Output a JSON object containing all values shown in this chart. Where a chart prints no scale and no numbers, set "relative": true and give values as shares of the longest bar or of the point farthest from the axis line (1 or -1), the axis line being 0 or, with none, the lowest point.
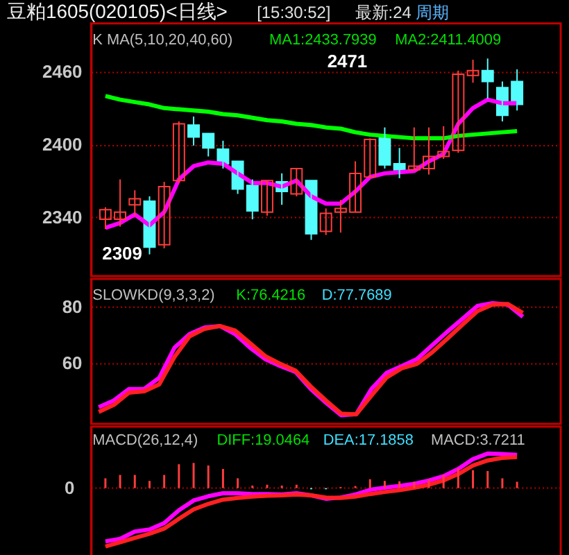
{
  "chart_data": [
    {
      "type": "candlestick",
      "title": "豆粕1605(020105)<日线>",
      "annotations": [
        "[15:30:52]",
        "最新:24",
        "周期",
        "K  MA(5,10,20,40,60)",
        "MA1:2433.7939",
        "MA2:2411.4009",
        "2309",
        "2471"
      ],
      "categories": [
        null,
        null,
        null,
        null,
        null,
        null,
        null,
        null,
        null,
        null,
        null,
        null,
        null,
        null,
        null,
        null,
        null,
        null,
        null,
        null,
        null,
        null,
        null,
        null,
        null,
        null,
        null,
        null,
        null
      ],
      "ohlc": [
        [
          2338,
          2348,
          2330,
          2346
        ],
        [
          2338,
          2371,
          2332,
          2344
        ],
        [
          2350,
          2362,
          2341,
          2355
        ],
        [
          2353,
          2357,
          2309,
          2315
        ],
        [
          2317,
          2369,
          2314,
          2365
        ],
        [
          2370,
          2419,
          2368,
          2417
        ],
        [
          2416,
          2423,
          2399,
          2406
        ],
        [
          2409,
          2409,
          2390,
          2397
        ],
        [
          2396,
          2403,
          2380,
          2384
        ],
        [
          2386,
          2386,
          2359,
          2363
        ],
        [
          2366,
          2371,
          2338,
          2345
        ],
        [
          2344,
          2370,
          2341,
          2370
        ],
        [
          2369,
          2376,
          2350,
          2361
        ],
        [
          2359,
          2380,
          2357,
          2380
        ],
        [
          2370,
          2370,
          2321,
          2326
        ],
        [
          2328,
          2347,
          2325,
          2343
        ],
        [
          2344,
          2354,
          2327,
          2347
        ],
        [
          2344,
          2386,
          2344,
          2376
        ],
        [
          2373,
          2405,
          2373,
          2404
        ],
        [
          2407,
          2414,
          2380,
          2383
        ],
        [
          2384,
          2397,
          2372,
          2379
        ],
        [
          2379,
          2414,
          2379,
          2382
        ],
        [
          2380,
          2414,
          2375,
          2390
        ],
        [
          2390,
          2415,
          2388,
          2394
        ],
        [
          2395,
          2461,
          2393,
          2458
        ],
        [
          2457,
          2470,
          2451,
          2461
        ],
        [
          2461,
          2471,
          2438,
          2452
        ],
        [
          2447,
          2452,
          2419,
          2424
        ],
        [
          2452,
          2462,
          2428,
          2433
        ]
      ],
      "colors": [
        "#ff3c3c",
        "#ff3c3c",
        "#ff3c3c",
        "#54fcfc",
        "#ff3c3c",
        "#ff3c3c",
        "#54fcfc",
        "#54fcfc",
        "#54fcfc",
        "#54fcfc",
        "#54fcfc",
        "#ff3c3c",
        "#54fcfc",
        "#ff3c3c",
        "#54fcfc",
        "#ff3c3c",
        "#ff3c3c",
        "#ff3c3c",
        "#ff3c3c",
        "#54fcfc",
        "#54fcfc",
        "#ff3c3c",
        "#ff3c3c",
        "#ff3c3c",
        "#ff3c3c",
        "#ff3c3c",
        "#54fcfc",
        "#54fcfc",
        "#54fcfc"
      ],
      "series": [
        {
          "type": "line",
          "color": "#ff00ff",
          "values": [
            2331,
            2335,
            2342,
            2333,
            2344,
            2371,
            2382,
            2385,
            2384,
            2376,
            2368,
            2368,
            2365,
            2370,
            2357,
            2351,
            2351,
            2361,
            2373,
            2376,
            2377,
            2378,
            2386,
            2392,
            2417,
            2430,
            2437,
            2434,
            2434
          ]
        },
        {
          "type": "line",
          "color": "#00ff00",
          "values": [
            2440,
            2437,
            2435,
            2433,
            2430,
            2429,
            2428,
            2427,
            2425,
            2424,
            2422,
            2420,
            2419,
            2417,
            2416,
            2414,
            2413,
            2410,
            2408,
            2407,
            2406,
            2405,
            2405,
            2405,
            2407,
            2408,
            2409,
            2410,
            2411
          ]
        }
      ],
      "ylim": [
        2291,
        2500
      ],
      "yticks": [
        2340,
        2400,
        2460
      ],
      "grid": "y",
      "tick_labels": "y"
    },
    {
      "type": "line",
      "annotations": [
        "SLOWKD(9,3,3,2)",
        "K:76.4216",
        "D:77.7689"
      ],
      "categories": [
        null,
        null,
        null,
        null,
        null,
        null,
        null,
        null,
        null,
        null,
        null,
        null,
        null,
        null,
        null,
        null,
        null,
        null,
        null,
        null,
        null,
        null,
        null,
        null,
        null,
        null,
        null,
        null,
        null
      ],
      "series": [
        {
          "color": "#ff00ff",
          "values": [
            44,
            46.4,
            50.5,
            50.5,
            54.6,
            65.3,
            70.2,
            72.6,
            73.1,
            70.2,
            65.3,
            61.2,
            58.7,
            56.6,
            50.5,
            45.6,
            41.1,
            41.5,
            50.5,
            56.3,
            58.7,
            61.2,
            66.1,
            71,
            75.6,
            80.3,
            81.3,
            80.8,
            76.4
          ]
        },
        {
          "color": "#ff2020",
          "values": [
            42.3,
            44.8,
            49.2,
            49.7,
            52.2,
            62,
            69.4,
            72.1,
            73.1,
            71.5,
            66.9,
            62.3,
            59.5,
            57.1,
            51.4,
            46.4,
            41.7,
            41.4,
            48.1,
            54.6,
            57.9,
            59.5,
            63.6,
            68.5,
            73.5,
            78.4,
            80.8,
            81,
            77.8
          ]
        }
      ],
      "ylim": [
        38,
        90
      ],
      "yticks": [
        60,
        80
      ],
      "grid": "y",
      "tick_labels": "y"
    },
    {
      "type": "line",
      "relative": true,
      "annotations": [
        "MACD(26,12,4)",
        "DIFF:19.0464",
        "DEA:17.1858",
        "MACD:3.7211"
      ],
      "categories": [
        null,
        null,
        null,
        null,
        null,
        null,
        null,
        null,
        null,
        null,
        null,
        null,
        null,
        null,
        null,
        null,
        null,
        null,
        null,
        null,
        null,
        null,
        null,
        null,
        null,
        null,
        null,
        null,
        null
      ],
      "series": [
        {
          "type": "bar",
          "colors": [
            "#ff3c3c",
            "#ff3c3c",
            "#ff3c3c",
            "#ff3c3c",
            "#ff3c3c",
            "#ff3c3c",
            "#ff3c3c",
            "#ff3c3c",
            "#ff3c3c",
            "#ff3c3c",
            "#ff3c3c",
            "#ff3c3c",
            "#ff3c3c",
            "#ff3c3c",
            "#54fcfc",
            "#54fcfc",
            "#ff3c3c",
            "#ff3c3c",
            "#ff3c3c",
            "#ff3c3c",
            "#ff3c3c",
            "#ff3c3c",
            "#ff3c3c",
            "#ff3c3c",
            "#ff3c3c",
            "#ff3c3c",
            "#ff3c3c",
            "#ff3c3c",
            "#ff3c3c"
          ],
          "values": [
            0.168,
            0.226,
            0.226,
            0.124,
            0.226,
            0.409,
            0.431,
            0.387,
            0.328,
            0.168,
            0.044,
            0.058,
            0.044,
            0.058,
            -0.02,
            -0.02,
            0.02,
            0.036,
            0.153,
            0.124,
            0.117,
            0.109,
            0.146,
            0.226,
            0.336,
            0.307,
            0.292,
            0.168,
            0.109
          ]
        },
        {
          "type": "line",
          "color": "#ff00ff",
          "values": [
            -0.912,
            -0.869,
            -0.745,
            -0.708,
            -0.599,
            -0.38,
            -0.212,
            -0.139,
            -0.088,
            -0.088,
            -0.102,
            -0.102,
            -0.109,
            -0.088,
            -0.124,
            -0.182,
            -0.161,
            -0.109,
            -0.029,
            0.007,
            0.036,
            0.073,
            0.131,
            0.204,
            0.328,
            0.496,
            0.591,
            0.584,
            0.569
          ]
        },
        {
          "type": "line",
          "color": "#ff2020",
          "values": [
            -1,
            -0.927,
            -0.854,
            -0.781,
            -0.693,
            -0.526,
            -0.365,
            -0.27,
            -0.197,
            -0.168,
            -0.146,
            -0.131,
            -0.124,
            -0.109,
            -0.124,
            -0.161,
            -0.168,
            -0.146,
            -0.102,
            -0.066,
            -0.036,
            0.007,
            0.058,
            0.131,
            0.241,
            0.387,
            0.474,
            0.518,
            0.533
          ]
        }
      ],
      "ref_lines": [
        {
          "axis": "y",
          "value": 0,
          "label": "0",
          "color": "#c00000",
          "line_style": "dotted"
        }
      ],
      "tick_labels": false
    }
  ]
}
